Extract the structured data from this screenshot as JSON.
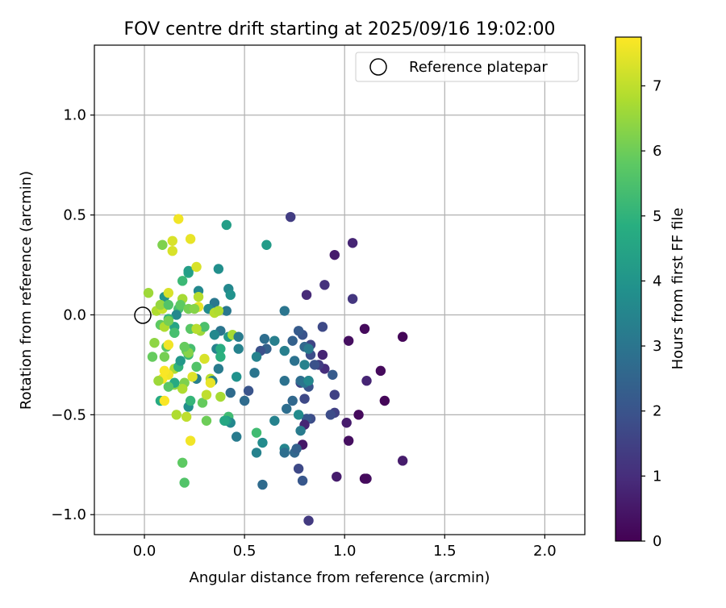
{
  "chart_data": {
    "type": "scatter",
    "title": "FOV centre drift starting at 2025/09/16 19:02:00",
    "xlabel": "Angular distance from reference (arcmin)",
    "ylabel": "Rotation from reference (arcmin)",
    "xlim": [
      -0.25,
      2.2
    ],
    "ylim": [
      -1.1,
      1.35
    ],
    "xticks": [
      0.0,
      0.5,
      1.0,
      1.5,
      2.0
    ],
    "xtick_labels": [
      "0.0",
      "0.5",
      "1.0",
      "1.5",
      "2.0"
    ],
    "yticks": [
      -1.0,
      -0.5,
      0.0,
      0.5,
      1.0
    ],
    "ytick_labels": [
      "−1.0",
      "−0.5",
      "0.0",
      "0.5",
      "1.0"
    ],
    "grid": true,
    "legend": {
      "position": "top-right",
      "label": "Reference platepar"
    },
    "reference_point": {
      "x": 0.0,
      "y": 0.0
    },
    "colorbar": {
      "label": "Hours from first FF file",
      "colormap": "viridis",
      "range": [
        0,
        7.75
      ],
      "ticks": [
        0,
        1,
        2,
        3,
        4,
        5,
        6,
        7
      ],
      "tick_labels": [
        "0",
        "1",
        "2",
        "3",
        "4",
        "5",
        "6",
        "7"
      ]
    },
    "points": [
      {
        "x": 1.29,
        "y": -0.11,
        "t": 0.1
      },
      {
        "x": 1.1,
        "y": -0.07,
        "t": 0.2
      },
      {
        "x": 1.02,
        "y": -0.13,
        "t": 0.3
      },
      {
        "x": 1.18,
        "y": -0.28,
        "t": 0.2
      },
      {
        "x": 1.2,
        "y": -0.43,
        "t": 0.1
      },
      {
        "x": 1.29,
        "y": -0.73,
        "t": 0.6
      },
      {
        "x": 1.11,
        "y": -0.82,
        "t": 0.3
      },
      {
        "x": 1.1,
        "y": -0.82,
        "t": 0.2
      },
      {
        "x": 1.02,
        "y": -0.63,
        "t": 0.3
      },
      {
        "x": 1.07,
        "y": -0.5,
        "t": 0.2
      },
      {
        "x": 1.01,
        "y": -0.54,
        "t": 0.6
      },
      {
        "x": 1.11,
        "y": -0.33,
        "t": 0.8
      },
      {
        "x": 1.04,
        "y": 0.36,
        "t": 0.8
      },
      {
        "x": 1.04,
        "y": 0.08,
        "t": 1.2
      },
      {
        "x": 0.95,
        "y": 0.3,
        "t": 0.6
      },
      {
        "x": 0.9,
        "y": 0.15,
        "t": 1.1
      },
      {
        "x": 0.81,
        "y": 0.1,
        "t": 0.9
      },
      {
        "x": 0.73,
        "y": 0.49,
        "t": 1.4
      },
      {
        "x": 0.89,
        "y": -0.06,
        "t": 1.7
      },
      {
        "x": 0.89,
        "y": -0.2,
        "t": 0.8
      },
      {
        "x": 0.9,
        "y": -0.27,
        "t": 1.0
      },
      {
        "x": 0.94,
        "y": -0.3,
        "t": 2.2
      },
      {
        "x": 0.95,
        "y": -0.4,
        "t": 1.5
      },
      {
        "x": 0.95,
        "y": -0.49,
        "t": 1.5
      },
      {
        "x": 0.93,
        "y": -0.5,
        "t": 1.8
      },
      {
        "x": 0.96,
        "y": -0.81,
        "t": 0.6
      },
      {
        "x": 0.87,
        "y": -0.25,
        "t": 1.4
      },
      {
        "x": 0.85,
        "y": -0.25,
        "t": 1.9
      },
      {
        "x": 0.83,
        "y": -0.15,
        "t": 1.6
      },
      {
        "x": 0.83,
        "y": -0.2,
        "t": 1.8
      },
      {
        "x": 0.82,
        "y": -0.33,
        "t": 1.2
      },
      {
        "x": 0.82,
        "y": -0.36,
        "t": 2.0
      },
      {
        "x": 0.83,
        "y": -0.52,
        "t": 1.8
      },
      {
        "x": 0.81,
        "y": -0.52,
        "t": 2.1
      },
      {
        "x": 0.8,
        "y": -0.42,
        "t": 1.7
      },
      {
        "x": 0.8,
        "y": -0.55,
        "t": 0.8
      },
      {
        "x": 0.79,
        "y": -0.65,
        "t": 0.5
      },
      {
        "x": 0.78,
        "y": -0.34,
        "t": 1.6
      },
      {
        "x": 0.79,
        "y": -0.1,
        "t": 2.0
      },
      {
        "x": 0.77,
        "y": -0.08,
        "t": 2.2
      },
      {
        "x": 0.74,
        "y": -0.13,
        "t": 2.4
      },
      {
        "x": 0.78,
        "y": -0.33,
        "t": 2.8
      },
      {
        "x": 0.8,
        "y": -0.16,
        "t": 2.6
      },
      {
        "x": 0.8,
        "y": -0.34,
        "t": 3.0
      },
      {
        "x": 0.82,
        "y": -0.33,
        "t": 3.6
      },
      {
        "x": 0.8,
        "y": -0.25,
        "t": 3.4
      },
      {
        "x": 0.82,
        "y": -0.17,
        "t": 3.2
      },
      {
        "x": 0.75,
        "y": -0.23,
        "t": 2.9
      },
      {
        "x": 0.74,
        "y": -0.43,
        "t": 2.6
      },
      {
        "x": 0.71,
        "y": -0.47,
        "t": 2.8
      },
      {
        "x": 0.7,
        "y": -0.18,
        "t": 3.3
      },
      {
        "x": 0.7,
        "y": 0.02,
        "t": 3.0
      },
      {
        "x": 0.7,
        "y": -0.33,
        "t": 2.9
      },
      {
        "x": 0.77,
        "y": -0.5,
        "t": 3.7
      },
      {
        "x": 0.75,
        "y": -0.69,
        "t": 2.6
      },
      {
        "x": 0.76,
        "y": -0.67,
        "t": 2.4
      },
      {
        "x": 0.77,
        "y": -0.77,
        "t": 1.7
      },
      {
        "x": 0.79,
        "y": -0.83,
        "t": 2.1
      },
      {
        "x": 0.82,
        "y": -1.03,
        "t": 1.3
      },
      {
        "x": 0.78,
        "y": -0.58,
        "t": 3.2
      },
      {
        "x": 0.7,
        "y": -0.67,
        "t": 3.5
      },
      {
        "x": 0.7,
        "y": -0.69,
        "t": 2.8
      },
      {
        "x": 0.65,
        "y": -0.13,
        "t": 3.3
      },
      {
        "x": 0.65,
        "y": -0.53,
        "t": 3.4
      },
      {
        "x": 0.6,
        "y": -0.12,
        "t": 2.8
      },
      {
        "x": 0.61,
        "y": -0.17,
        "t": 2.4
      },
      {
        "x": 0.58,
        "y": -0.18,
        "t": 1.9
      },
      {
        "x": 0.56,
        "y": -0.21,
        "t": 3.4
      },
      {
        "x": 0.55,
        "y": -0.29,
        "t": 3.0
      },
      {
        "x": 0.52,
        "y": -0.38,
        "t": 2.0
      },
      {
        "x": 0.5,
        "y": -0.43,
        "t": 2.7
      },
      {
        "x": 0.56,
        "y": -0.59,
        "t": 5.3
      },
      {
        "x": 0.59,
        "y": -0.64,
        "t": 3.7
      },
      {
        "x": 0.56,
        "y": -0.69,
        "t": 3.4
      },
      {
        "x": 0.59,
        "y": -0.85,
        "t": 2.7
      },
      {
        "x": 0.61,
        "y": 0.35,
        "t": 4.2
      },
      {
        "x": 0.41,
        "y": 0.45,
        "t": 4.3
      },
      {
        "x": 0.37,
        "y": 0.23,
        "t": 3.8
      },
      {
        "x": 0.42,
        "y": 0.13,
        "t": 3.6
      },
      {
        "x": 0.43,
        "y": 0.1,
        "t": 3.9
      },
      {
        "x": 0.41,
        "y": 0.02,
        "t": 3.1
      },
      {
        "x": 0.38,
        "y": -0.08,
        "t": 3.0
      },
      {
        "x": 0.35,
        "y": -0.1,
        "t": 3.6
      },
      {
        "x": 0.36,
        "y": -0.17,
        "t": 3.4
      },
      {
        "x": 0.37,
        "y": -0.27,
        "t": 3.2
      },
      {
        "x": 0.42,
        "y": -0.11,
        "t": 4.1
      },
      {
        "x": 0.44,
        "y": -0.1,
        "t": 6.7
      },
      {
        "x": 0.47,
        "y": -0.11,
        "t": 3.2
      },
      {
        "x": 0.47,
        "y": -0.17,
        "t": 3.4
      },
      {
        "x": 0.46,
        "y": -0.31,
        "t": 3.9
      },
      {
        "x": 0.43,
        "y": -0.39,
        "t": 2.7
      },
      {
        "x": 0.42,
        "y": -0.51,
        "t": 5.3
      },
      {
        "x": 0.43,
        "y": -0.54,
        "t": 3.6
      },
      {
        "x": 0.46,
        "y": -0.61,
        "t": 3.2
      },
      {
        "x": 0.41,
        "y": -0.53,
        "t": 4.2
      },
      {
        "x": 0.38,
        "y": -0.17,
        "t": 4.8
      },
      {
        "x": 0.38,
        "y": -0.21,
        "t": 4.9
      },
      {
        "x": 0.35,
        "y": 0.06,
        "t": 3.1
      },
      {
        "x": 0.32,
        "y": 0.03,
        "t": 3.7
      },
      {
        "x": 0.27,
        "y": 0.12,
        "t": 3.6
      },
      {
        "x": 0.22,
        "y": 0.21,
        "t": 4.6
      },
      {
        "x": 0.22,
        "y": 0.22,
        "t": 4.3
      },
      {
        "x": 0.19,
        "y": 0.17,
        "t": 5.2
      },
      {
        "x": 0.17,
        "y": 0.03,
        "t": 5.4
      },
      {
        "x": 0.16,
        "y": 0.0,
        "t": 3.6
      },
      {
        "x": 0.1,
        "y": 0.09,
        "t": 4.0
      },
      {
        "x": 0.12,
        "y": -0.02,
        "t": 5.1
      },
      {
        "x": 0.08,
        "y": -0.05,
        "t": 5.8
      },
      {
        "x": 0.15,
        "y": -0.06,
        "t": 4.5
      },
      {
        "x": 0.15,
        "y": -0.09,
        "t": 5.8
      },
      {
        "x": 0.11,
        "y": -0.16,
        "t": 5.7
      },
      {
        "x": 0.1,
        "y": -0.21,
        "t": 6.1
      },
      {
        "x": 0.05,
        "y": -0.14,
        "t": 6.4
      },
      {
        "x": 0.04,
        "y": -0.21,
        "t": 5.9
      },
      {
        "x": 0.15,
        "y": -0.27,
        "t": 6.8
      },
      {
        "x": 0.17,
        "y": -0.26,
        "t": 5.0
      },
      {
        "x": 0.21,
        "y": -0.18,
        "t": 5.9
      },
      {
        "x": 0.23,
        "y": -0.17,
        "t": 5.4
      },
      {
        "x": 0.22,
        "y": -0.2,
        "t": 5.2
      },
      {
        "x": 0.18,
        "y": -0.23,
        "t": 4.1
      },
      {
        "x": 0.26,
        "y": -0.26,
        "t": 5.6
      },
      {
        "x": 0.3,
        "y": -0.22,
        "t": 7.3
      },
      {
        "x": 0.33,
        "y": -0.32,
        "t": 6.9
      },
      {
        "x": 0.34,
        "y": -0.33,
        "t": 3.4
      },
      {
        "x": 0.26,
        "y": -0.32,
        "t": 3.3
      },
      {
        "x": 0.24,
        "y": -0.31,
        "t": 7.4
      },
      {
        "x": 0.2,
        "y": -0.34,
        "t": 6.2
      },
      {
        "x": 0.19,
        "y": -0.37,
        "t": 6.8
      },
      {
        "x": 0.15,
        "y": -0.35,
        "t": 6.4
      },
      {
        "x": 0.15,
        "y": -0.34,
        "t": 4.7
      },
      {
        "x": 0.12,
        "y": -0.3,
        "t": 7.6
      },
      {
        "x": 0.1,
        "y": -0.28,
        "t": 7.7
      },
      {
        "x": 0.09,
        "y": -0.32,
        "t": 7.7
      },
      {
        "x": 0.07,
        "y": -0.33,
        "t": 6.6
      },
      {
        "x": 0.12,
        "y": -0.36,
        "t": 5.7
      },
      {
        "x": 0.08,
        "y": -0.43,
        "t": 4.7
      },
      {
        "x": 0.1,
        "y": -0.43,
        "t": 7.7
      },
      {
        "x": 0.16,
        "y": -0.5,
        "t": 6.8
      },
      {
        "x": 0.21,
        "y": -0.51,
        "t": 7.0
      },
      {
        "x": 0.22,
        "y": -0.46,
        "t": 3.8
      },
      {
        "x": 0.23,
        "y": -0.43,
        "t": 5.1
      },
      {
        "x": 0.29,
        "y": -0.44,
        "t": 5.9
      },
      {
        "x": 0.31,
        "y": -0.4,
        "t": 7.0
      },
      {
        "x": 0.31,
        "y": -0.53,
        "t": 6.0
      },
      {
        "x": 0.23,
        "y": -0.63,
        "t": 7.6
      },
      {
        "x": 0.19,
        "y": -0.74,
        "t": 5.8
      },
      {
        "x": 0.2,
        "y": -0.84,
        "t": 5.6
      },
      {
        "x": 0.09,
        "y": 0.35,
        "t": 6.2
      },
      {
        "x": 0.14,
        "y": 0.37,
        "t": 7.3
      },
      {
        "x": 0.14,
        "y": 0.32,
        "t": 7.3
      },
      {
        "x": 0.17,
        "y": 0.48,
        "t": 7.6
      },
      {
        "x": 0.23,
        "y": 0.38,
        "t": 7.5
      },
      {
        "x": 0.26,
        "y": 0.24,
        "t": 7.3
      },
      {
        "x": 0.12,
        "y": 0.11,
        "t": 7.3
      },
      {
        "x": 0.02,
        "y": 0.11,
        "t": 6.6
      },
      {
        "x": 0.06,
        "y": 0.02,
        "t": 6.8
      },
      {
        "x": 0.09,
        "y": 0.03,
        "t": 7.1
      },
      {
        "x": 0.08,
        "y": 0.05,
        "t": 6.5
      },
      {
        "x": 0.12,
        "y": 0.05,
        "t": 5.6
      },
      {
        "x": 0.19,
        "y": 0.08,
        "t": 6.7
      },
      {
        "x": 0.18,
        "y": 0.05,
        "t": 5.8
      },
      {
        "x": 0.22,
        "y": 0.03,
        "t": 6.1
      },
      {
        "x": 0.27,
        "y": 0.04,
        "t": 7.5
      },
      {
        "x": 0.27,
        "y": 0.09,
        "t": 6.9
      },
      {
        "x": 0.25,
        "y": 0.03,
        "t": 6.3
      },
      {
        "x": 0.35,
        "y": 0.01,
        "t": 6.9
      },
      {
        "x": 0.37,
        "y": 0.02,
        "t": 6.8
      },
      {
        "x": 0.28,
        "y": -0.08,
        "t": 6.6
      },
      {
        "x": 0.23,
        "y": -0.07,
        "t": 5.7
      },
      {
        "x": 0.3,
        "y": -0.06,
        "t": 5.5
      },
      {
        "x": 0.26,
        "y": -0.07,
        "t": 6.9
      },
      {
        "x": 0.1,
        "y": -0.06,
        "t": 6.8
      },
      {
        "x": 0.12,
        "y": -0.03,
        "t": 6.1
      },
      {
        "x": 0.15,
        "y": -0.09,
        "t": 5.4
      },
      {
        "x": 0.12,
        "y": -0.15,
        "t": 7.6
      },
      {
        "x": 0.22,
        "y": -0.19,
        "t": 6.3
      },
      {
        "x": 0.2,
        "y": -0.16,
        "t": 5.9
      },
      {
        "x": 0.38,
        "y": -0.41,
        "t": 6.7
      },
      {
        "x": 0.4,
        "y": -0.53,
        "t": 4.6
      },
      {
        "x": 0.33,
        "y": -0.34,
        "t": 7.5
      }
    ]
  }
}
